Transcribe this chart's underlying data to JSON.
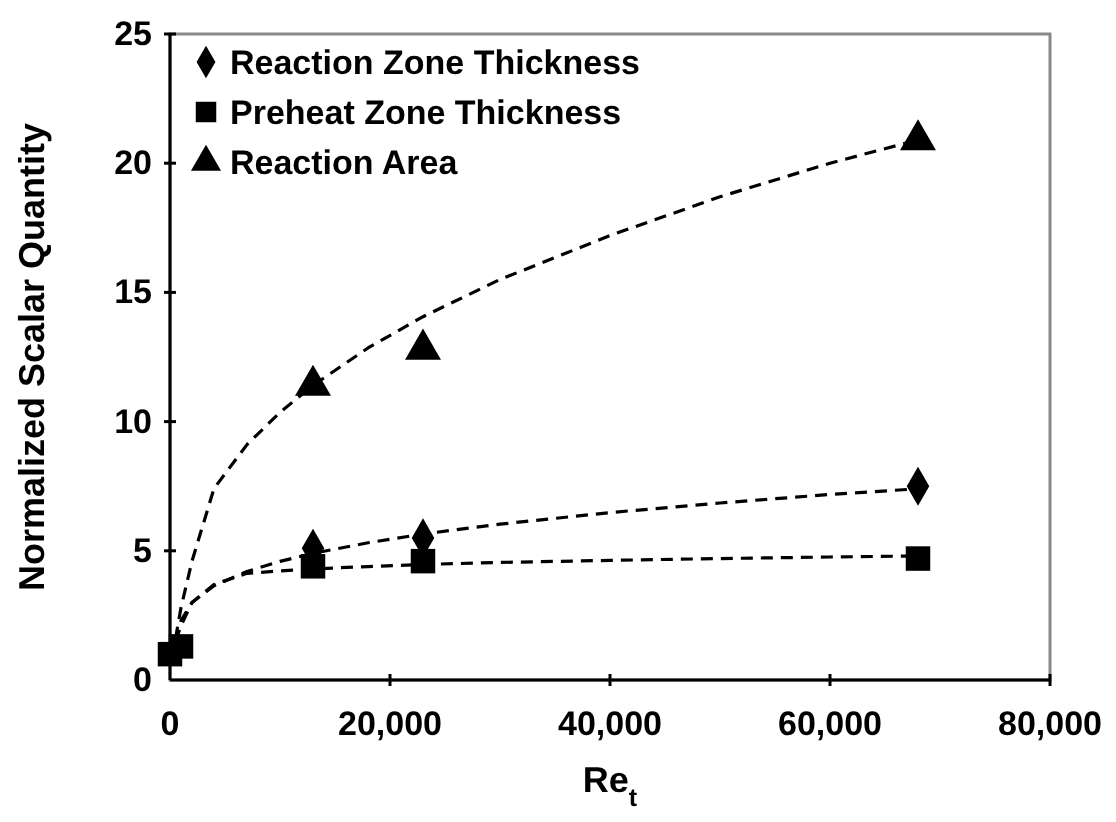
{
  "chart_data": {
    "type": "scatter",
    "xlabel": "Re$_{t}$",
    "ylabel": "Normalized Scalar Quantity",
    "xlim": [
      0,
      80000
    ],
    "xticks": [
      {
        "value": 0,
        "label": "0"
      },
      {
        "value": 20000,
        "label": "20,000"
      },
      {
        "value": 40000,
        "label": "40,000"
      },
      {
        "value": 60000,
        "label": "60,000"
      },
      {
        "value": 80000,
        "label": "80,000"
      }
    ],
    "ylim": [
      0,
      25
    ],
    "yticks": [
      0,
      5,
      10,
      15,
      20,
      25
    ],
    "grid": false,
    "legend": "top left",
    "line_style": "dashed",
    "series": [
      {
        "name": "Reaction Zone Thickness",
        "color": "#000000",
        "marker": "diamond",
        "x": [
          13000,
          23000,
          68000
        ],
        "values": [
          5.1,
          5.5,
          7.5
        ]
      },
      {
        "name": "Preheat Zone Thickness",
        "color": "#000000",
        "marker": "square",
        "x": [
          0,
          1000,
          13000,
          23000,
          68000
        ],
        "values": [
          1,
          1.3,
          4.4,
          4.6,
          4.7
        ]
      },
      {
        "name": "Reaction Area",
        "color": "#000000",
        "marker": "triangle",
        "x": [
          13000,
          23000,
          68000
        ],
        "values": [
          11.4,
          12.8,
          20.9
        ]
      },
      {
        "type": "line",
        "color": "#000000",
        "x": [
          500,
          1000,
          2000,
          4000,
          7000,
          10000,
          13000,
          18000,
          23000,
          30000,
          40000,
          50000,
          60000,
          68000
        ],
        "values": [
          1.5,
          2.1,
          3.0,
          3.65,
          4.2,
          4.59,
          4.9,
          5.31,
          5.65,
          6.03,
          6.48,
          6.85,
          7.18,
          7.4
        ]
      },
      {
        "type": "line",
        "color": "#000000",
        "x": [
          500,
          1000,
          2000,
          4000,
          7000,
          10000,
          13000,
          18000,
          23000,
          30000,
          40000,
          50000,
          60000,
          68000
        ],
        "values": [
          1.5,
          2.3,
          3.0,
          3.7,
          4.13,
          4.22,
          4.3,
          4.39,
          4.47,
          4.55,
          4.63,
          4.7,
          4.76,
          4.8
        ]
      },
      {
        "type": "line",
        "color": "#000000",
        "x": [
          500,
          1000,
          2000,
          4000,
          7000,
          10000,
          13000,
          18000,
          23000,
          30000,
          40000,
          50000,
          60000,
          68000
        ],
        "values": [
          1.6,
          2.8,
          4.6,
          7.41,
          9.11,
          10.36,
          11.4,
          12.85,
          14.06,
          15.5,
          17.2,
          18.7,
          20.0,
          20.9
        ]
      }
    ]
  }
}
